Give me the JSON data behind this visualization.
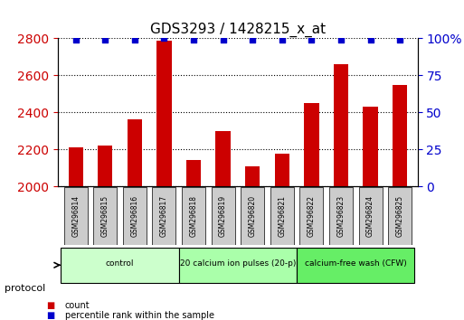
{
  "title": "GDS3293 / 1428215_x_at",
  "samples": [
    "GSM296814",
    "GSM296815",
    "GSM296816",
    "GSM296817",
    "GSM296818",
    "GSM296819",
    "GSM296820",
    "GSM296821",
    "GSM296822",
    "GSM296823",
    "GSM296824",
    "GSM296825"
  ],
  "counts": [
    2210,
    2220,
    2360,
    2790,
    2140,
    2300,
    2110,
    2175,
    2450,
    2660,
    2430,
    2550
  ],
  "percentile_ranks": [
    99,
    99,
    99,
    100,
    99,
    99,
    99,
    99,
    99,
    99,
    99,
    99
  ],
  "ylim_left": [
    2000,
    2800
  ],
  "ylim_right": [
    0,
    100
  ],
  "yticks_left": [
    2000,
    2200,
    2400,
    2600,
    2800
  ],
  "yticks_right": [
    0,
    25,
    50,
    75,
    100
  ],
  "bar_color": "#cc0000",
  "dot_color": "#0000cc",
  "bar_width": 0.5,
  "groups": [
    {
      "label": "control",
      "start": 0,
      "end": 3,
      "color": "#ccffcc"
    },
    {
      "label": "20 calcium ion pulses (20-p)",
      "start": 4,
      "end": 7,
      "color": "#aaffaa"
    },
    {
      "label": "calcium-free wash (CFW)",
      "start": 8,
      "end": 11,
      "color": "#66ee66"
    }
  ],
  "protocol_label": "protocol",
  "legend_count_label": "count",
  "legend_pct_label": "percentile rank within the sample",
  "left_axis_color": "#cc0000",
  "right_axis_color": "#0000cc",
  "background_color": "#ffffff",
  "plot_bg_color": "#ffffff",
  "tick_label_bg": "#cccccc"
}
